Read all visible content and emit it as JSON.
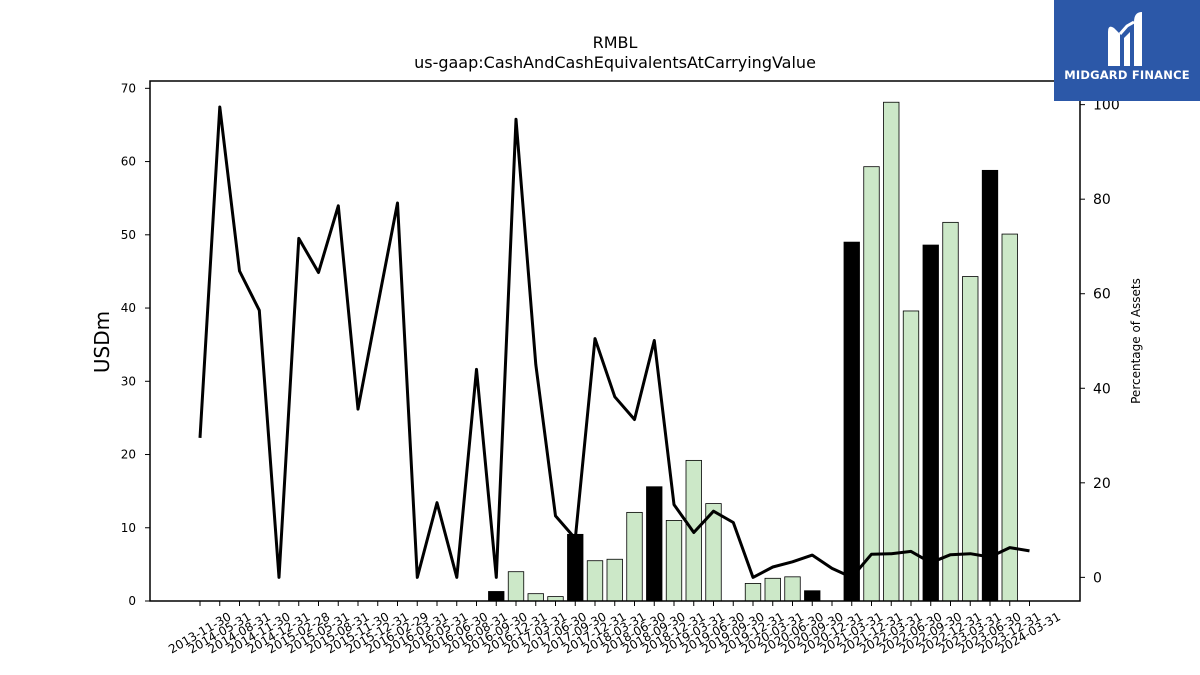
{
  "brand": {
    "name": "MIDGARD FINANCE",
    "logo_icon": "midgard-m-logo-icon"
  },
  "colors": {
    "bar_highlight": "#000000",
    "bar_normal": "#cce8c8",
    "line": "#000000",
    "brand_bg": "#2c58a8"
  },
  "chart_data": {
    "type": "bar+line",
    "title": "RMBL",
    "subtitle": "us-gaap:CashAndCashEquivalentsAtCarryingValue",
    "ylabel": "USDm",
    "y2label": "Percentage of Assets",
    "ylim": [
      0,
      71
    ],
    "y2lim": [
      -5,
      105
    ],
    "yticks": [
      0,
      10,
      20,
      30,
      40,
      50,
      60,
      70
    ],
    "y2ticks": [
      0,
      20,
      40,
      60,
      80,
      100
    ],
    "categories": [
      "2013-11-30",
      "2014-05-31",
      "2014-08-31",
      "2014-11-30",
      "2014-12-31",
      "2015-02-28",
      "2015-05-31",
      "2015-08-31",
      "2015-11-30",
      "2015-12-31",
      "2016-02-29",
      "2016-03-31",
      "2016-05-31",
      "2016-06-30",
      "2016-08-31",
      "2016-09-30",
      "2016-12-31",
      "2017-03-31",
      "2017-06-30",
      "2017-09-30",
      "2017-12-31",
      "2018-03-31",
      "2018-06-30",
      "2018-09-30",
      "2018-12-31",
      "2019-03-31",
      "2019-06-30",
      "2019-09-30",
      "2019-12-31",
      "2020-03-31",
      "2020-06-30",
      "2020-09-30",
      "2020-12-31",
      "2021-03-31",
      "2021-12-31",
      "2022-03-31",
      "2022-06-30",
      "2022-09-30",
      "2022-12-31",
      "2023-03-31",
      "2023-06-30",
      "2023-12-31",
      "2024-03-31"
    ],
    "series": [
      {
        "kind": "bar",
        "axis": "left",
        "values": [
          0,
          0,
          0,
          0,
          0,
          0,
          0,
          0,
          0,
          0,
          0,
          0,
          0,
          0,
          0,
          1.3,
          4.0,
          1.0,
          0.6,
          9.1,
          5.5,
          5.7,
          12.1,
          15.6,
          11.0,
          19.2,
          13.3,
          0,
          2.4,
          3.1,
          3.3,
          1.4,
          0,
          49.0,
          59.3,
          68.1,
          39.6,
          48.6,
          51.7,
          44.3,
          58.8,
          50.1,
          0
        ],
        "highlight": [
          false,
          false,
          false,
          false,
          false,
          false,
          false,
          false,
          false,
          false,
          false,
          false,
          false,
          false,
          false,
          true,
          false,
          false,
          false,
          true,
          false,
          false,
          false,
          true,
          false,
          false,
          false,
          false,
          false,
          false,
          false,
          true,
          false,
          true,
          false,
          false,
          false,
          true,
          false,
          false,
          true,
          false,
          false
        ]
      },
      {
        "kind": "line",
        "axis": "right",
        "values": [
          29.5,
          99.5,
          64.8,
          56.5,
          0,
          71.7,
          64.5,
          78.6,
          35.6,
          57.6,
          79.2,
          0,
          15.8,
          0,
          44,
          0,
          96.9,
          45,
          13,
          8.2,
          50.5,
          38.2,
          33.4,
          50.1,
          15.4,
          9.5,
          14,
          11.6,
          0,
          2.2,
          3.3,
          4.7,
          1.9,
          0,
          4.9,
          5,
          5.5,
          3.1,
          4.8,
          5,
          4.3,
          6.3,
          5.6
        ]
      }
    ]
  }
}
